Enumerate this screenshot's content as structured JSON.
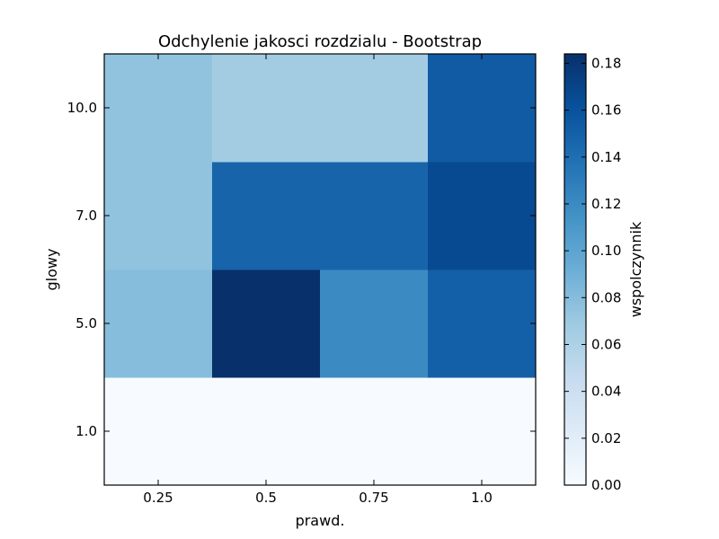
{
  "chart_data": {
    "type": "heatmap",
    "title": "Odchylenie jakosci rozdzialu - Bootstrap",
    "xlabel": "prawd.",
    "ylabel": "glowy",
    "x_categories": [
      "0.25",
      "0.5",
      "0.75",
      "1.0"
    ],
    "y_categories": [
      "1.0",
      "5.0",
      "7.0",
      "10.0"
    ],
    "values": [
      [
        0.0,
        0.0,
        0.0,
        0.0
      ],
      [
        0.08,
        0.184,
        0.12,
        0.15
      ],
      [
        0.075,
        0.147,
        0.147,
        0.166
      ],
      [
        0.075,
        0.066,
        0.066,
        0.154
      ]
    ],
    "colorbar": {
      "label": "wspolczynnik",
      "range": [
        0.0,
        0.184
      ],
      "ticks": [
        "0.00",
        "0.02",
        "0.04",
        "0.06",
        "0.08",
        "0.10",
        "0.12",
        "0.14",
        "0.16",
        "0.18"
      ],
      "colormap": "Blues"
    },
    "grid": false
  }
}
